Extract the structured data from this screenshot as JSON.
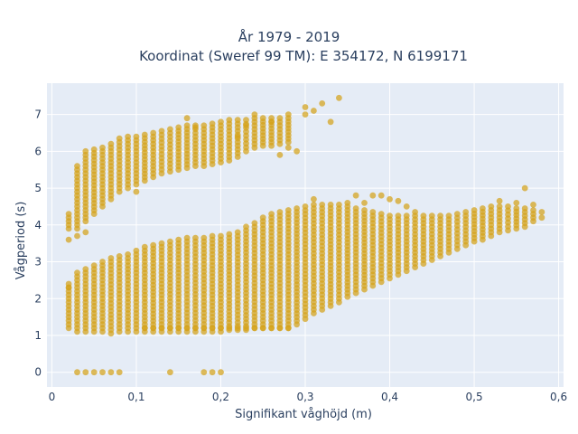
{
  "chart_data": {
    "type": "scatter",
    "title": "År 1979 - 2019",
    "subtitle": "Koordinat (Sweref 99 TM): E 354172, N 6199171",
    "xlabel": "Signifikant våghöjd (m)",
    "ylabel": "Vågperiod (s)",
    "xlim": [
      -0.0058,
      0.6058
    ],
    "ylim": [
      -0.4,
      7.85
    ],
    "x_ticks": [
      "0",
      "0,1",
      "0,2",
      "0,3",
      "0,4",
      "0,5",
      "0,6"
    ],
    "x_tick_values": [
      0,
      0.1,
      0.2,
      0.3,
      0.4,
      0.5,
      0.6
    ],
    "y_ticks": [
      "0",
      "1",
      "2",
      "3",
      "4",
      "5",
      "6",
      "7"
    ],
    "y_tick_values": [
      0,
      1,
      2,
      3,
      4,
      5,
      6,
      7
    ],
    "grid": true,
    "marker_color": "#d4a21a",
    "background_color": "#e5ecf6",
    "lower_band": {
      "x": [
        0.02,
        0.03,
        0.04,
        0.05,
        0.06,
        0.07,
        0.08,
        0.09,
        0.1,
        0.11,
        0.12,
        0.13,
        0.14,
        0.15,
        0.16,
        0.17,
        0.18,
        0.19,
        0.2,
        0.21,
        0.22,
        0.23,
        0.24,
        0.25,
        0.26,
        0.27,
        0.28,
        0.29,
        0.3,
        0.31,
        0.32,
        0.33,
        0.34,
        0.35,
        0.36,
        0.37,
        0.38,
        0.39,
        0.4,
        0.41,
        0.42,
        0.43,
        0.44,
        0.45,
        0.46,
        0.47,
        0.48,
        0.49,
        0.5,
        0.51,
        0.52,
        0.53,
        0.54,
        0.55,
        0.56,
        0.57,
        0.58
      ],
      "y_min": [
        1.2,
        1.1,
        1.1,
        1.1,
        1.1,
        1.05,
        1.1,
        1.1,
        1.1,
        1.1,
        1.1,
        1.1,
        1.1,
        1.1,
        1.1,
        1.1,
        1.1,
        1.1,
        1.1,
        1.15,
        1.15,
        1.15,
        1.2,
        1.2,
        1.2,
        1.2,
        1.2,
        1.3,
        1.45,
        1.6,
        1.7,
        1.8,
        1.9,
        2.05,
        2.15,
        2.25,
        2.35,
        2.45,
        2.55,
        2.65,
        2.75,
        2.85,
        2.95,
        3.05,
        3.15,
        3.25,
        3.35,
        3.45,
        3.55,
        3.6,
        3.7,
        3.8,
        3.85,
        3.9,
        3.95,
        4.1,
        4.2
      ],
      "y_max": [
        2.4,
        2.7,
        2.8,
        2.9,
        3.0,
        3.1,
        3.15,
        3.2,
        3.3,
        3.4,
        3.45,
        3.5,
        3.55,
        3.6,
        3.65,
        3.65,
        3.65,
        3.7,
        3.7,
        3.75,
        3.8,
        3.95,
        4.05,
        4.2,
        4.3,
        4.35,
        4.4,
        4.45,
        4.5,
        4.55,
        4.55,
        4.55,
        4.55,
        4.5,
        4.45,
        4.4,
        4.35,
        4.3,
        4.25,
        4.25,
        4.25,
        4.25,
        4.25,
        4.25,
        4.25,
        4.25,
        4.3,
        4.35,
        4.4,
        4.45,
        4.5,
        4.5,
        4.5,
        4.45,
        4.45,
        4.4,
        4.35
      ]
    },
    "upper_band": {
      "x": [
        0.02,
        0.03,
        0.04,
        0.05,
        0.06,
        0.07,
        0.08,
        0.09,
        0.1,
        0.11,
        0.12,
        0.13,
        0.14,
        0.15,
        0.16,
        0.17,
        0.18,
        0.19,
        0.2,
        0.21,
        0.22,
        0.23,
        0.24,
        0.25,
        0.26,
        0.27,
        0.28
      ],
      "y_min": [
        3.9,
        3.9,
        4.1,
        4.3,
        4.5,
        4.7,
        4.9,
        5.0,
        5.1,
        5.2,
        5.3,
        5.4,
        5.45,
        5.5,
        5.55,
        5.6,
        5.6,
        5.65,
        5.7,
        5.75,
        5.85,
        6.0,
        6.1,
        6.15,
        6.15,
        6.2,
        6.25
      ],
      "y_max": [
        4.3,
        5.6,
        6.0,
        6.05,
        6.1,
        6.2,
        6.35,
        6.4,
        6.4,
        6.45,
        6.5,
        6.55,
        6.6,
        6.65,
        6.7,
        6.7,
        6.7,
        6.75,
        6.8,
        6.85,
        6.85,
        6.85,
        6.9,
        6.9,
        6.9,
        6.9,
        6.9
      ]
    },
    "floor_row": {
      "y": 1.2,
      "x": [
        0.11,
        0.12,
        0.13,
        0.14,
        0.15,
        0.16,
        0.17,
        0.18,
        0.19,
        0.2,
        0.21,
        0.22,
        0.23,
        0.24,
        0.25,
        0.26,
        0.27,
        0.28
      ]
    },
    "zero_points": {
      "x": [
        0.03,
        0.04,
        0.05,
        0.06,
        0.07,
        0.08,
        0.14,
        0.18,
        0.19,
        0.2
      ],
      "y": [
        0,
        0,
        0,
        0,
        0,
        0,
        0,
        0,
        0,
        0
      ]
    },
    "outliers": {
      "x": [
        0.02,
        0.02,
        0.03,
        0.04,
        0.1,
        0.16,
        0.17,
        0.22,
        0.23,
        0.24,
        0.26,
        0.27,
        0.28,
        0.28,
        0.29,
        0.3,
        0.3,
        0.31,
        0.31,
        0.32,
        0.33,
        0.34,
        0.35,
        0.36,
        0.37,
        0.38,
        0.39,
        0.4,
        0.41,
        0.42,
        0.43,
        0.53,
        0.55,
        0.56,
        0.57
      ],
      "y": [
        3.6,
        2.3,
        3.7,
        3.8,
        4.9,
        6.9,
        6.65,
        6.4,
        6.7,
        7.0,
        6.8,
        5.9,
        7.0,
        6.1,
        6.0,
        7.0,
        7.2,
        7.1,
        4.7,
        7.3,
        6.8,
        7.45,
        4.6,
        4.8,
        4.6,
        4.8,
        4.8,
        4.7,
        4.65,
        4.5,
        4.35,
        4.65,
        4.6,
        5.0,
        4.55
      ]
    }
  }
}
